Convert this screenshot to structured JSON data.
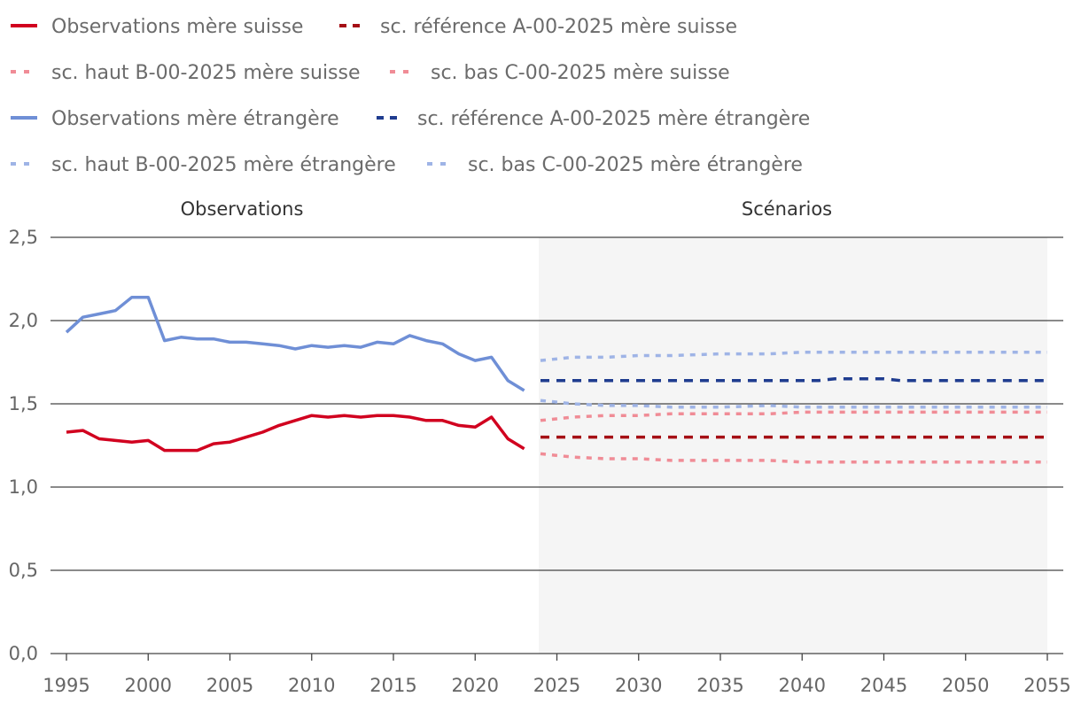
{
  "chart_data": {
    "type": "line",
    "title": "",
    "xlabel": "",
    "ylabel": "",
    "xlim": [
      1995,
      2055
    ],
    "ylim": [
      0,
      2.5
    ],
    "yticks": [
      "0,0",
      "0,5",
      "1,0",
      "1,5",
      "2,0",
      "2,5"
    ],
    "xticks": [
      "1995",
      "2000",
      "2005",
      "2010",
      "2015",
      "2020",
      "2025",
      "2030",
      "2035",
      "2040",
      "2045",
      "2050",
      "2055"
    ],
    "sections": [
      "Observations",
      "Scénarios"
    ],
    "scenario_start": 2024,
    "colors": {
      "obs_suisse": "#d1001f",
      "ref_suisse": "#a50f15",
      "alt_suisse": "#f08c96",
      "obs_etr": "#6f8fd6",
      "ref_etr": "#1f3c8f",
      "alt_etr": "#9fb4e6",
      "scenario_bg": "#f5f5f5",
      "grid": "#444444"
    },
    "series": [
      {
        "key": "obs_suisse",
        "name": "Observations mère suisse",
        "style": "solid",
        "x": [
          1995,
          1996,
          1997,
          1998,
          1999,
          2000,
          2001,
          2002,
          2003,
          2004,
          2005,
          2006,
          2007,
          2008,
          2009,
          2010,
          2011,
          2012,
          2013,
          2014,
          2015,
          2016,
          2017,
          2018,
          2019,
          2020,
          2021,
          2022,
          2023
        ],
        "values": [
          1.33,
          1.34,
          1.29,
          1.28,
          1.27,
          1.28,
          1.22,
          1.22,
          1.22,
          1.26,
          1.27,
          1.3,
          1.33,
          1.37,
          1.4,
          1.43,
          1.42,
          1.43,
          1.42,
          1.43,
          1.43,
          1.42,
          1.4,
          1.4,
          1.37,
          1.36,
          1.42,
          1.29,
          1.23
        ]
      },
      {
        "key": "ref_suisse",
        "name": "sc. référence A-00-2025 mère suisse",
        "style": "dashed",
        "x": [
          2024,
          2055
        ],
        "values": [
          1.3,
          1.3
        ]
      },
      {
        "key": "alt_suisse",
        "name": "sc. haut B-00-2025 mère suisse",
        "style": "dotted",
        "x": [
          2024,
          2026,
          2028,
          2030,
          2032,
          2035,
          2038,
          2040,
          2045,
          2050,
          2055
        ],
        "values": [
          1.4,
          1.42,
          1.43,
          1.43,
          1.44,
          1.44,
          1.44,
          1.45,
          1.45,
          1.45,
          1.45
        ]
      },
      {
        "key": "alt_suisse",
        "name": "sc. bas C-00-2025 mère suisse",
        "style": "dotted",
        "x": [
          2024,
          2026,
          2028,
          2030,
          2032,
          2035,
          2038,
          2040,
          2045,
          2050,
          2055
        ],
        "values": [
          1.2,
          1.18,
          1.17,
          1.17,
          1.16,
          1.16,
          1.16,
          1.15,
          1.15,
          1.15,
          1.15
        ]
      },
      {
        "key": "obs_etr",
        "name": "Observations mère étrangère",
        "style": "solid",
        "x": [
          1995,
          1996,
          1997,
          1998,
          1999,
          2000,
          2001,
          2002,
          2003,
          2004,
          2005,
          2006,
          2007,
          2008,
          2009,
          2010,
          2011,
          2012,
          2013,
          2014,
          2015,
          2016,
          2017,
          2018,
          2019,
          2020,
          2021,
          2022,
          2023
        ],
        "values": [
          1.93,
          2.02,
          2.04,
          2.06,
          2.14,
          2.14,
          1.88,
          1.9,
          1.89,
          1.89,
          1.87,
          1.87,
          1.86,
          1.85,
          1.83,
          1.85,
          1.84,
          1.85,
          1.84,
          1.87,
          1.86,
          1.91,
          1.88,
          1.86,
          1.8,
          1.76,
          1.78,
          1.64,
          1.58
        ]
      },
      {
        "key": "ref_etr",
        "name": "sc. référence A-00-2025 mère étrangère",
        "style": "dashed",
        "x": [
          2024,
          2030,
          2035,
          2040,
          2041,
          2042,
          2044,
          2045,
          2046,
          2050,
          2055
        ],
        "values": [
          1.64,
          1.64,
          1.64,
          1.64,
          1.64,
          1.65,
          1.65,
          1.65,
          1.64,
          1.64,
          1.64
        ]
      },
      {
        "key": "alt_etr",
        "name": "sc. haut B-00-2025 mère étrangère",
        "style": "dotted",
        "x": [
          2024,
          2026,
          2028,
          2030,
          2032,
          2035,
          2038,
          2040,
          2045,
          2050,
          2055
        ],
        "values": [
          1.76,
          1.78,
          1.78,
          1.79,
          1.79,
          1.8,
          1.8,
          1.81,
          1.81,
          1.81,
          1.81
        ]
      },
      {
        "key": "alt_etr",
        "name": "sc. bas C-00-2025 mère étrangère",
        "style": "dotted",
        "x": [
          2024,
          2026,
          2028,
          2030,
          2032,
          2035,
          2038,
          2040,
          2045,
          2050,
          2055
        ],
        "values": [
          1.52,
          1.5,
          1.49,
          1.49,
          1.48,
          1.48,
          1.49,
          1.48,
          1.48,
          1.48,
          1.48
        ]
      }
    ],
    "legend": [
      {
        "label": "Observations mère suisse",
        "key": "obs_suisse",
        "style": "solid"
      },
      {
        "label": "sc. référence A-00-2025 mère suisse",
        "key": "ref_suisse",
        "style": "dashed"
      },
      {
        "label": "sc. haut B-00-2025 mère suisse",
        "key": "alt_suisse",
        "style": "dotted"
      },
      {
        "label": "sc. bas C-00-2025 mère suisse",
        "key": "alt_suisse",
        "style": "dotted"
      },
      {
        "label": "Observations mère étrangère",
        "key": "obs_etr",
        "style": "solid"
      },
      {
        "label": "sc. référence A-00-2025 mère étrangère",
        "key": "ref_etr",
        "style": "dashed"
      },
      {
        "label": "sc. haut B-00-2025 mère étrangère",
        "key": "alt_etr",
        "style": "dotted"
      },
      {
        "label": "sc. bas C-00-2025 mère étrangère",
        "key": "alt_etr",
        "style": "dotted"
      }
    ]
  }
}
